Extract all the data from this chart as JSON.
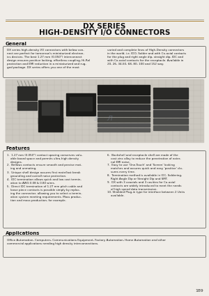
{
  "title_line1": "DX SERIES",
  "title_line2": "HIGH-DENSITY I/O CONNECTORS",
  "section_general_title": "General",
  "general_text": "DX series high-density I/O connectors with below connector are perfect for tomorrow's miniaturized electronics devices. The best 1.27 mm (0.050\") interconnect design ensures positive locking, effortless coupling, Hi-Rel protection and EMI reduction in a miniaturized and rugged package. DX series offers you one of the most varied and complete lines of High-Density connectors in the world, i.e. IDO, Solder and with Co-axial contacts for the plug and right angle dip, straight dip, IDC and with Co-axial contacts for the receptacle. Available in 20, 26, 34,50, 68, 80, 100 and 152 way.",
  "section_features_title": "Features",
  "features_left": [
    "1.27 mm (0.050\") contact spacing conserves valu-\nable board space and permits ultra-high density\ndesigns.",
    "Bellows contacts ensure smooth and precise mat-\ning and unmating.",
    "Unique shell design assures first mate/last break\ngrounding and overall noise protection.",
    "IDC termination allows quick and low cost termin-\nation to AWG 0.08 & 0.80 wires.",
    "Direct IDC termination of 1.27 mm pitch cable and\nloose piece contacts is possible simply by replac-\ning the connector, allowing you to select a termin-\nation system meeting requirements. Mass produc-\ntion and mass production, for example."
  ],
  "features_right": [
    "Backshell and receptacle shell are made of the\ncast zinc alloy to reduce the penetration of exter-\nnal EMI noise.",
    "Easy to use 'One-Touch' and 'Screen' looking\nmatches and assures quick and easy 'positive' clo-\nsures every time.",
    "Termination method is available in IDC, Soldering,\nRight Angle Dip or Straight Dip and SMT.",
    "DX with 3 coaxials and 3 cavities for Co-axial\ncontacts are widely introduced to meet the needs\nof high speed data transmission.",
    "Shielded Plug-in type for interface between 2 Units\navailable."
  ],
  "section_applications_title": "Applications",
  "applications_text": "Office Automation, Computers, Communications Equipment, Factory Automation, Home Automation and other commercial applications needing high density interconnections.",
  "page_number": "189"
}
